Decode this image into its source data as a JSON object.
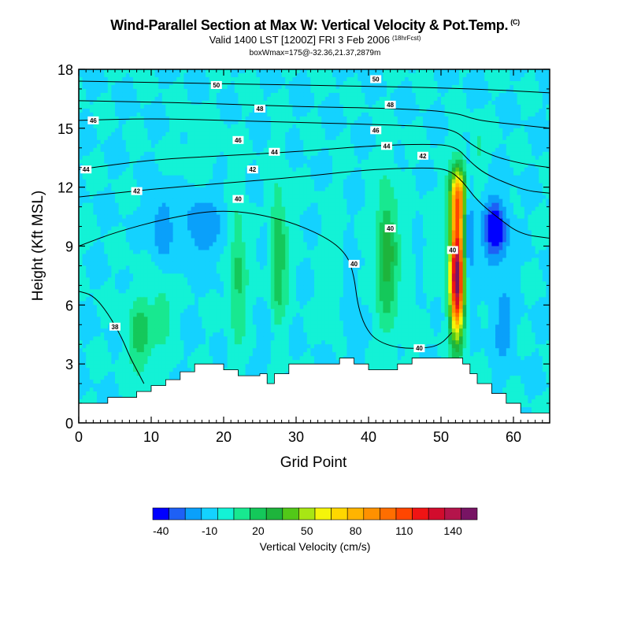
{
  "chart_data": {
    "type": "heatmap",
    "title": "Wind-Parallel Section at Max W: Vertical Velocity & Pot.Temp.",
    "title_mark": "(C)",
    "subtitle": "Valid 1400 LST [1200Z] FRI 3 Feb 2006",
    "subtitle_note": "(18hrFcst)",
    "subsubtitle": "boxWmax=175@-32.36,21.37,2879m",
    "xlabel": "Grid Point",
    "ylabel": "Height (Kft MSL)",
    "xlim": [
      0,
      65
    ],
    "ylim": [
      0,
      18
    ],
    "x_ticks": [
      0,
      10,
      20,
      30,
      40,
      50,
      60
    ],
    "y_ticks": [
      0,
      3,
      6,
      9,
      12,
      15,
      18
    ],
    "background_level_cms": 0,
    "updrafts": [
      {
        "x": 52.2,
        "y": 7.5,
        "sx": 1.0,
        "sy": 3.0,
        "w": 160
      },
      {
        "x": 52.4,
        "y": 11.5,
        "sx": 1.2,
        "sy": 1.5,
        "w": 85
      },
      {
        "x": 42.5,
        "y": 8.5,
        "sx": 1.5,
        "sy": 3.5,
        "w": 36
      },
      {
        "x": 27.5,
        "y": 8.5,
        "sx": 1.3,
        "sy": 3.5,
        "w": 30
      },
      {
        "x": 22.0,
        "y": 7.5,
        "sx": 1.2,
        "sy": 3.5,
        "w": 24
      },
      {
        "x": 8.5,
        "y": 4.5,
        "sx": 1.8,
        "sy": 2.0,
        "w": 26
      },
      {
        "x": 11.5,
        "y": 5.5,
        "sx": 1.2,
        "sy": 1.5,
        "w": 20
      },
      {
        "x": 55.0,
        "y": 14.0,
        "sx": 1.5,
        "sy": 1.2,
        "w": 12
      },
      {
        "x": 17.0,
        "y": 14.0,
        "sx": 3.0,
        "sy": 1.5,
        "w": 5
      },
      {
        "x": 35.0,
        "y": 8.0,
        "sx": 1.5,
        "sy": 3.0,
        "w": 8
      },
      {
        "x": 45.5,
        "y": 7.0,
        "sx": 1.2,
        "sy": 3.0,
        "w": 8
      },
      {
        "x": 48.5,
        "y": 9.0,
        "sx": 1.2,
        "sy": 2.5,
        "w": 6
      }
    ],
    "downdrafts": [
      {
        "x": 57.5,
        "y": 9.8,
        "sx": 1.6,
        "sy": 1.6,
        "w": -42
      },
      {
        "x": 53.8,
        "y": 10.0,
        "sx": 0.6,
        "sy": 3.0,
        "w": -32
      },
      {
        "x": 58.5,
        "y": 5.0,
        "sx": 1.5,
        "sy": 2.0,
        "w": -15
      },
      {
        "x": 11.5,
        "y": 10.0,
        "sx": 1.3,
        "sy": 1.5,
        "w": -20
      },
      {
        "x": 17.0,
        "y": 10.0,
        "sx": 3.0,
        "sy": 1.6,
        "w": -18
      },
      {
        "x": 26.0,
        "y": 9.5,
        "sx": 1.0,
        "sy": 1.8,
        "w": -8
      },
      {
        "x": 26.2,
        "y": 4.5,
        "sx": 0.7,
        "sy": 1.2,
        "w": -12
      },
      {
        "x": 37.5,
        "y": 6.0,
        "sx": 1.0,
        "sy": 2.5,
        "w": -8
      },
      {
        "x": 47.0,
        "y": 8.0,
        "sx": 1.0,
        "sy": 2.0,
        "w": -7
      }
    ],
    "terrain": [
      {
        "x": 0,
        "h": 1.0
      },
      {
        "x": 4,
        "h": 1.3
      },
      {
        "x": 8,
        "h": 1.6
      },
      {
        "x": 10,
        "h": 1.9
      },
      {
        "x": 12,
        "h": 2.2
      },
      {
        "x": 14,
        "h": 2.6
      },
      {
        "x": 16,
        "h": 3.0
      },
      {
        "x": 20,
        "h": 2.7
      },
      {
        "x": 22,
        "h": 2.4
      },
      {
        "x": 25,
        "h": 2.5
      },
      {
        "x": 26,
        "h": 2.0
      },
      {
        "x": 27,
        "h": 2.5
      },
      {
        "x": 29,
        "h": 3.0
      },
      {
        "x": 36,
        "h": 3.3
      },
      {
        "x": 38,
        "h": 3.0
      },
      {
        "x": 40,
        "h": 2.7
      },
      {
        "x": 44,
        "h": 3.0
      },
      {
        "x": 46,
        "h": 3.3
      },
      {
        "x": 53,
        "h": 3.0
      },
      {
        "x": 54,
        "h": 2.5
      },
      {
        "x": 55,
        "h": 2.0
      },
      {
        "x": 57,
        "h": 1.5
      },
      {
        "x": 59,
        "h": 1.0
      },
      {
        "x": 61,
        "h": 0.5
      },
      {
        "x": 65,
        "h": 0.5
      }
    ],
    "theta_contours": [
      {
        "label": "38",
        "label_at": [
          5,
          4.9
        ],
        "points": [
          [
            0,
            6.7
          ],
          [
            2,
            6.5
          ],
          [
            4,
            5.6
          ],
          [
            6,
            4.3
          ],
          [
            7,
            3.4
          ],
          [
            8,
            2.7
          ],
          [
            9,
            2.0
          ]
        ]
      },
      {
        "label": "40",
        "label_at": [
          47,
          3.8
        ],
        "points": [
          [
            0,
            9.0
          ],
          [
            5,
            9.7
          ],
          [
            12,
            10.4
          ],
          [
            20,
            10.9
          ],
          [
            28,
            10.4
          ],
          [
            34,
            9.5
          ],
          [
            37,
            8.6
          ],
          [
            38,
            7.5
          ],
          [
            38.5,
            6.0
          ],
          [
            39.5,
            4.9
          ],
          [
            41,
            4.2
          ],
          [
            44,
            3.8
          ],
          [
            48,
            3.8
          ],
          [
            50,
            4.0
          ],
          [
            51.5,
            4.6
          ]
        ]
      },
      {
        "label": "42",
        "label_at": [
          8,
          11.8
        ],
        "points": [
          [
            0,
            11.5
          ],
          [
            10,
            11.9
          ],
          [
            20,
            12.2
          ],
          [
            30,
            12.5
          ],
          [
            40,
            12.9
          ],
          [
            48,
            13.0
          ],
          [
            51,
            12.9
          ],
          [
            53,
            12.3
          ],
          [
            55,
            11.3
          ],
          [
            58,
            10.4
          ],
          [
            61,
            9.6
          ],
          [
            65,
            9.4
          ]
        ]
      },
      {
        "label": "44",
        "label_at": [
          1,
          12.9
        ],
        "points": [
          [
            0,
            12.9
          ],
          [
            10,
            13.4
          ],
          [
            20,
            13.6
          ],
          [
            30,
            13.8
          ],
          [
            40,
            14.1
          ],
          [
            48,
            14.2
          ],
          [
            52,
            14.1
          ],
          [
            54,
            13.3
          ],
          [
            56,
            12.7
          ],
          [
            59,
            12.2
          ],
          [
            62,
            11.8
          ],
          [
            65,
            11.7
          ]
        ]
      },
      {
        "label": "46",
        "label_at": [
          2,
          15.4
        ],
        "points": [
          [
            0,
            15.4
          ],
          [
            10,
            15.5
          ],
          [
            20,
            15.4
          ],
          [
            30,
            15.3
          ],
          [
            40,
            15.2
          ],
          [
            48,
            15.1
          ],
          [
            52,
            14.9
          ],
          [
            54,
            14.2
          ],
          [
            57,
            13.6
          ],
          [
            61,
            13.2
          ],
          [
            65,
            13.0
          ]
        ]
      },
      {
        "label": "48",
        "label_at": [
          25,
          16.0
        ],
        "points": [
          [
            0,
            16.4
          ],
          [
            15,
            16.3
          ],
          [
            30,
            16.1
          ],
          [
            45,
            16.0
          ],
          [
            52,
            15.8
          ],
          [
            55,
            15.4
          ],
          [
            60,
            15.2
          ],
          [
            65,
            15.0
          ]
        ]
      },
      {
        "label": "50",
        "label_at": [
          19,
          17.2
        ],
        "points": [
          [
            0,
            17.4
          ],
          [
            15,
            17.3
          ],
          [
            30,
            17.2
          ],
          [
            45,
            17.1
          ],
          [
            55,
            17.0
          ],
          [
            65,
            16.8
          ]
        ]
      }
    ],
    "contour_labels": [
      {
        "text": "38",
        "x": 5.0,
        "y": 4.9
      },
      {
        "text": "40",
        "x": 47.0,
        "y": 3.8
      },
      {
        "text": "40",
        "x": 38.0,
        "y": 8.1
      },
      {
        "text": "40",
        "x": 43.0,
        "y": 9.9
      },
      {
        "text": "40",
        "x": 51.6,
        "y": 8.8
      },
      {
        "text": "40",
        "x": 22.0,
        "y": 11.4
      },
      {
        "text": "42",
        "x": 8.0,
        "y": 11.8
      },
      {
        "text": "42",
        "x": 24.0,
        "y": 12.9
      },
      {
        "text": "42",
        "x": 47.5,
        "y": 13.6
      },
      {
        "text": "44",
        "x": 1.0,
        "y": 12.9
      },
      {
        "text": "44",
        "x": 27.0,
        "y": 13.8
      },
      {
        "text": "44",
        "x": 42.5,
        "y": 14.1
      },
      {
        "text": "46",
        "x": 2.0,
        "y": 15.4
      },
      {
        "text": "46",
        "x": 22.0,
        "y": 14.4
      },
      {
        "text": "46",
        "x": 41.0,
        "y": 14.9
      },
      {
        "text": "48",
        "x": 25.0,
        "y": 16.0
      },
      {
        "text": "48",
        "x": 43.0,
        "y": 16.2
      },
      {
        "text": "50",
        "x": 19.0,
        "y": 17.2
      },
      {
        "text": "50",
        "x": 41.0,
        "y": 17.5
      }
    ],
    "colorbar": {
      "label": "Vertical Velocity (cm/s)",
      "levels": [
        -40,
        -30,
        -20,
        -10,
        0,
        10,
        20,
        30,
        40,
        50,
        60,
        70,
        80,
        90,
        100,
        110,
        120,
        130,
        140,
        150
      ],
      "colors": [
        "#0000ff",
        "#1e60f5",
        "#0aa0fa",
        "#14d2ff",
        "#13f2d6",
        "#18e890",
        "#14c85a",
        "#1eb43c",
        "#52c818",
        "#a8e614",
        "#f5f50a",
        "#ffd700",
        "#ffb400",
        "#ff9100",
        "#ff6e00",
        "#ff4600",
        "#f01414",
        "#d20c2d",
        "#b4144b",
        "#781464"
      ],
      "tick_labels": [
        {
          "text": "-40",
          "at": -40
        },
        {
          "text": "-10",
          "at": -10
        },
        {
          "text": "20",
          "at": 20
        },
        {
          "text": "50",
          "at": 50
        },
        {
          "text": "80",
          "at": 80
        },
        {
          "text": "110",
          "at": 110
        },
        {
          "text": "140",
          "at": 140
        }
      ]
    }
  }
}
